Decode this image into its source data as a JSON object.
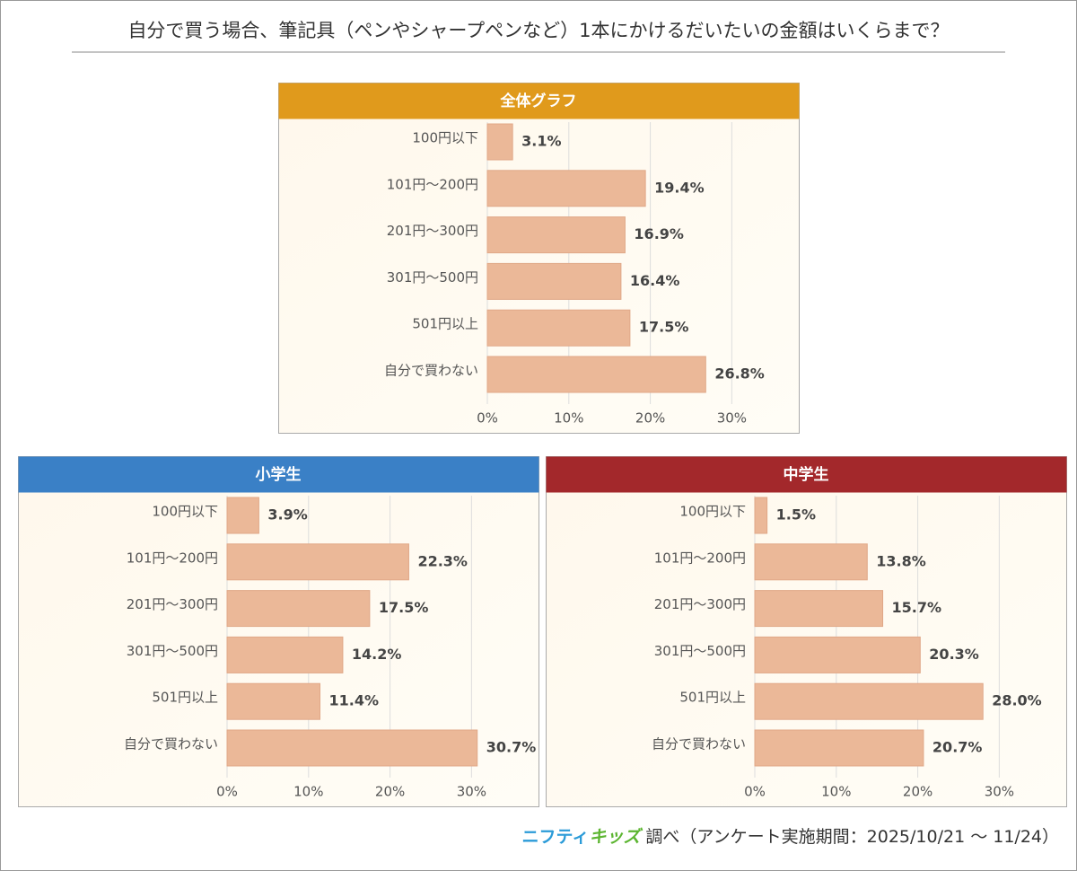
{
  "title": "自分で買う場合、筆記具（ペンやシャープペンなど）1本にかけるだいたいの金額はいくらまで？",
  "chart_data": [
    {
      "type": "bar",
      "orientation": "horizontal",
      "title": "全体グラフ",
      "header_color": "#e09a1c",
      "color": "#ebb898",
      "categories": [
        "100円以下",
        "101円～200円",
        "201円～300円",
        "301円～500円",
        "501円以上",
        "自分で買わない"
      ],
      "values": [
        3.1,
        19.4,
        16.9,
        16.4,
        17.5,
        26.8
      ],
      "value_labels": [
        "3.1%",
        "19.4%",
        "16.9%",
        "16.4%",
        "17.5%",
        "26.8%"
      ],
      "xlim": [
        0,
        38
      ],
      "xticks": [
        {
          "value": 0,
          "label": "0%"
        },
        {
          "value": 10,
          "label": "10%"
        },
        {
          "value": 20,
          "label": "20%"
        },
        {
          "value": 30,
          "label": "30%"
        }
      ],
      "grid": true
    },
    {
      "type": "bar",
      "orientation": "horizontal",
      "title": "小学生",
      "header_color": "#3a80c6",
      "color": "#ebb898",
      "categories": [
        "100円以下",
        "101円～200円",
        "201円～300円",
        "301円～500円",
        "501円以上",
        "自分で買わない"
      ],
      "values": [
        3.9,
        22.3,
        17.5,
        14.2,
        11.4,
        30.7
      ],
      "value_labels": [
        "3.9%",
        "22.3%",
        "17.5%",
        "14.2%",
        "11.4%",
        "30.7%"
      ],
      "xlim": [
        0,
        38
      ],
      "xticks": [
        {
          "value": 0,
          "label": "0%"
        },
        {
          "value": 10,
          "label": "10%"
        },
        {
          "value": 20,
          "label": "20%"
        },
        {
          "value": 30,
          "label": "30%"
        }
      ],
      "grid": true
    },
    {
      "type": "bar",
      "orientation": "horizontal",
      "title": "中学生",
      "header_color": "#a3282b",
      "color": "#ebb898",
      "categories": [
        "100円以下",
        "101円～200円",
        "201円～300円",
        "301円～500円",
        "501円以上",
        "自分で買わない"
      ],
      "values": [
        1.5,
        13.8,
        15.7,
        20.3,
        28.0,
        20.7
      ],
      "value_labels": [
        "1.5%",
        "13.8%",
        "15.7%",
        "20.3%",
        "28.0%",
        "20.7%"
      ],
      "xlim": [
        0,
        38
      ],
      "xticks": [
        {
          "value": 0,
          "label": "0%"
        },
        {
          "value": 10,
          "label": "10%"
        },
        {
          "value": 20,
          "label": "20%"
        },
        {
          "value": 30,
          "label": "30%"
        }
      ],
      "grid": true
    }
  ],
  "source": {
    "brand_1": "ニフティ",
    "brand_2": "キッズ",
    "text": "調べ（アンケート実施期間：2025/10/21 ～ 11/24）"
  }
}
